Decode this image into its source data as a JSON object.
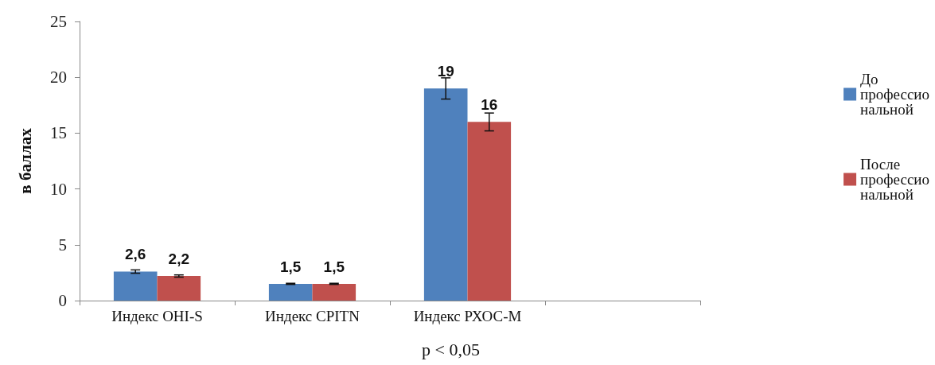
{
  "chart_data": {
    "type": "bar",
    "ylabel": "в баллах",
    "categories": [
      "Индекс OHI-S",
      "Индекс CPITN",
      "Индекс РХОС-М",
      null
    ],
    "series": [
      {
        "name": "До профессиональной",
        "color": "#4f81bd",
        "values": [
          2.6,
          1.5,
          19,
          null
        ],
        "errors": [
          0.15,
          0.05,
          0.95,
          null
        ],
        "value_labels": [
          "2,6",
          "1,5",
          "19",
          null
        ]
      },
      {
        "name": "После профессиональной",
        "color": "#c0504d",
        "values": [
          2.2,
          1.5,
          16,
          null
        ],
        "errors": [
          0.1,
          0.05,
          0.8,
          null
        ],
        "value_labels": [
          "2,2",
          "1,5",
          "16",
          null
        ]
      }
    ],
    "ylim": [
      0,
      25
    ],
    "yticks": [
      0,
      5,
      10,
      15,
      20,
      25
    ],
    "grid": false,
    "legend": "right",
    "annotations": [
      "p < 0,05"
    ]
  }
}
